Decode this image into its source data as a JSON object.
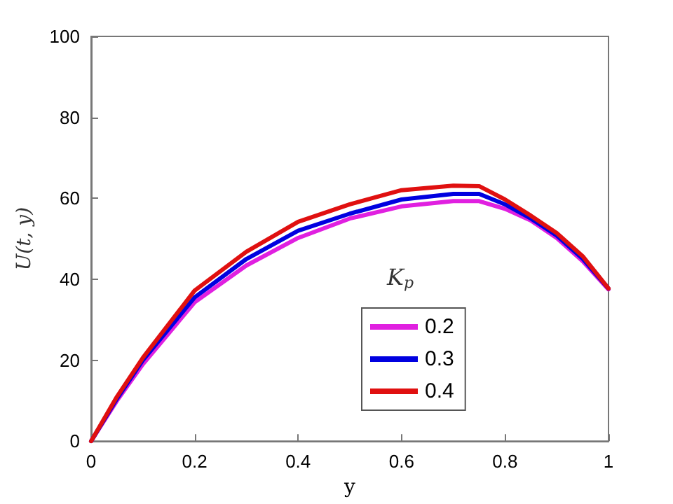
{
  "chart_data": {
    "type": "line",
    "xlabel": "y",
    "ylabel": "U(t, y)",
    "legend_title": "K$_{p}$",
    "legend": "bottom right",
    "grid": false,
    "marker": "none",
    "line_style": "solid",
    "x": [
      0,
      0.05,
      0.1,
      0.2,
      0.3,
      0.4,
      0.5,
      0.6,
      0.7,
      0.75,
      0.8,
      0.85,
      0.9,
      0.95,
      1
    ],
    "xlim": [
      0,
      1
    ],
    "xticks": [
      0,
      0.2,
      0.4,
      0.6,
      0.8,
      1
    ],
    "ylim": [
      0,
      100
    ],
    "yticks": [
      0,
      20,
      40,
      60,
      80,
      100
    ],
    "series": [
      {
        "name": "0.2",
        "color": "#e020e0",
        "values": [
          0,
          10,
          19,
          34.3,
          43.4,
          50.2,
          55,
          58,
          59.3,
          59.3,
          57.4,
          54.5,
          50.2,
          44.5,
          37.5
        ]
      },
      {
        "name": "0.3",
        "color": "#0000e0",
        "values": [
          0,
          10.5,
          20,
          35.5,
          45,
          52,
          56.2,
          59.7,
          61.1,
          61.1,
          58.5,
          55,
          50.8,
          45.1,
          37.7
        ]
      },
      {
        "name": "0.4",
        "color": "#e01010",
        "values": [
          0,
          11,
          20.6,
          37.2,
          46.8,
          54.2,
          58.5,
          62,
          63.1,
          63,
          59.7,
          55.7,
          51.4,
          45.7,
          37.7
        ]
      }
    ]
  }
}
